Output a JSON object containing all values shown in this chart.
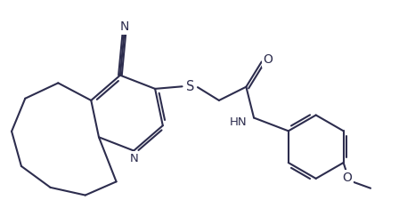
{
  "bg": "#ffffff",
  "lc": "#2d2d4e",
  "lw": 1.5,
  "figsize": [
    4.57,
    2.52
  ],
  "dpi": 100,
  "xlim": [
    0,
    10.5
  ],
  "ylim": [
    0.5,
    6.0
  ]
}
